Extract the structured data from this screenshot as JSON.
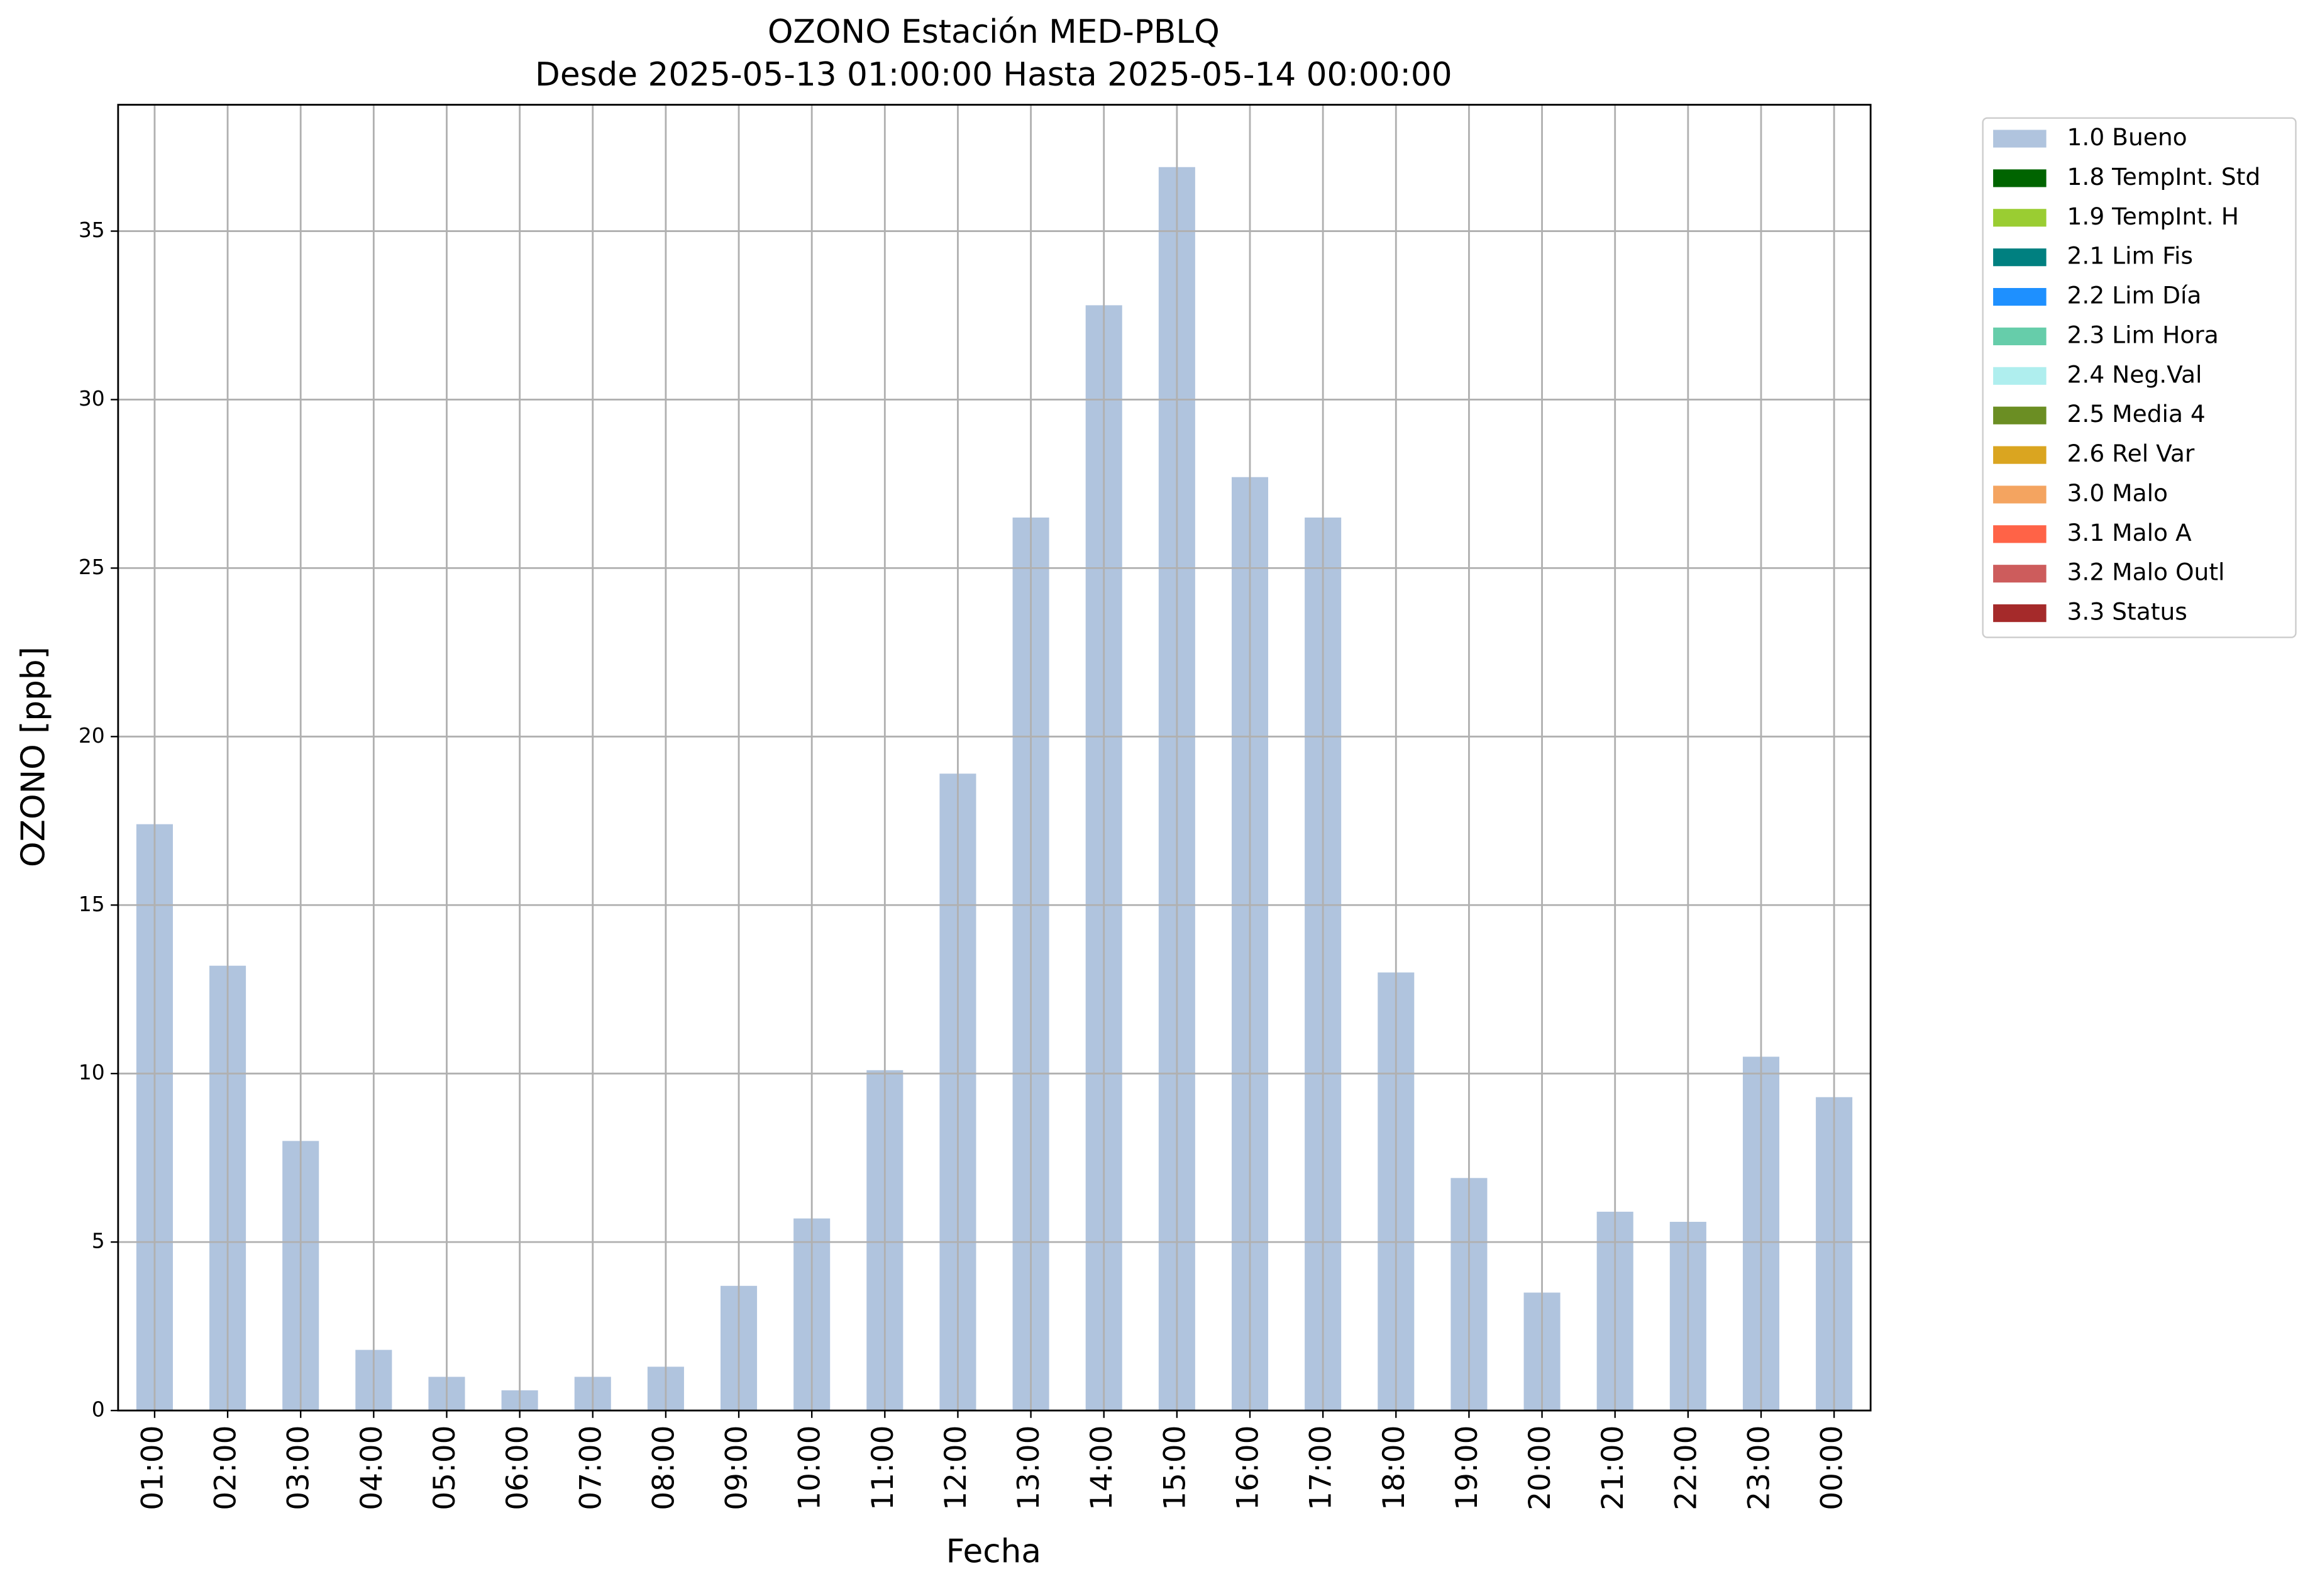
{
  "chart_data": {
    "type": "stacked_bar",
    "title": "OZONO Estación MED-PBLQ",
    "subtitle": "Desde 2025-05-13 01:00:00 Hasta 2025-05-14 00:00:00",
    "x_label": "Fecha",
    "y_label": "OZONO [ppb]",
    "categories": [
      "01:00",
      "02:00",
      "03:00",
      "04:00",
      "05:00",
      "06:00",
      "07:00",
      "08:00",
      "09:00",
      "10:00",
      "11:00",
      "12:00",
      "13:00",
      "14:00",
      "15:00",
      "16:00",
      "17:00",
      "18:00",
      "19:00",
      "20:00",
      "21:00",
      "22:00",
      "23:00",
      "00:00"
    ],
    "series": [
      {
        "name": "1.0 Bueno",
        "color": "#b0c4de",
        "values": [
          17.4,
          13.2,
          8.0,
          1.8,
          1.0,
          0.6,
          1.0,
          1.3,
          3.7,
          5.7,
          10.1,
          18.9,
          26.5,
          32.8,
          36.9,
          27.7,
          26.5,
          13.0,
          6.9,
          3.5,
          5.9,
          5.6,
          10.5,
          9.3
        ]
      },
      {
        "name": "1.8 TempInt. Std",
        "color": "#006400",
        "values": [
          0,
          0,
          0,
          0,
          0,
          0,
          0,
          0,
          0,
          0,
          0,
          0,
          0,
          0,
          0,
          0,
          0,
          0,
          0,
          0,
          0,
          0,
          0,
          0
        ]
      },
      {
        "name": "1.9 TempInt. H",
        "color": "#9acd32",
        "values": [
          0,
          0,
          0,
          0,
          0,
          0,
          0,
          0,
          0,
          0,
          0,
          0,
          0,
          0,
          0,
          0,
          0,
          0,
          0,
          0,
          0,
          0,
          0,
          0
        ]
      },
      {
        "name": "2.1 Lim Fis",
        "color": "#008080",
        "values": [
          0,
          0,
          0,
          0,
          0,
          0,
          0,
          0,
          0,
          0,
          0,
          0,
          0,
          0,
          0,
          0,
          0,
          0,
          0,
          0,
          0,
          0,
          0,
          0
        ]
      },
      {
        "name": "2.2 Lim Día",
        "color": "#1e90ff",
        "values": [
          0,
          0,
          0,
          0,
          0,
          0,
          0,
          0,
          0,
          0,
          0,
          0,
          0,
          0,
          0,
          0,
          0,
          0,
          0,
          0,
          0,
          0,
          0,
          0
        ]
      },
      {
        "name": "2.3 Lim Hora",
        "color": "#66cdaa",
        "values": [
          0,
          0,
          0,
          0,
          0,
          0,
          0,
          0,
          0,
          0,
          0,
          0,
          0,
          0,
          0,
          0,
          0,
          0,
          0,
          0,
          0,
          0,
          0,
          0
        ]
      },
      {
        "name": "2.4 Neg.Val",
        "color": "#afeeee",
        "values": [
          0,
          0,
          0,
          0,
          0,
          0,
          0,
          0,
          0,
          0,
          0,
          0,
          0,
          0,
          0,
          0,
          0,
          0,
          0,
          0,
          0,
          0,
          0,
          0
        ]
      },
      {
        "name": "2.5 Media 4",
        "color": "#6b8e23",
        "values": [
          0,
          0,
          0,
          0,
          0,
          0,
          0,
          0,
          0,
          0,
          0,
          0,
          0,
          0,
          0,
          0,
          0,
          0,
          0,
          0,
          0,
          0,
          0,
          0
        ]
      },
      {
        "name": "2.6 Rel Var",
        "color": "#daa520",
        "values": [
          0,
          0,
          0,
          0,
          0,
          0,
          0,
          0,
          0,
          0,
          0,
          0,
          0,
          0,
          0,
          0,
          0,
          0,
          0,
          0,
          0,
          0,
          0,
          0
        ]
      },
      {
        "name": "3.0 Malo",
        "color": "#f4a460",
        "values": [
          0,
          0,
          0,
          0,
          0,
          0,
          0,
          0,
          0,
          0,
          0,
          0,
          0,
          0,
          0,
          0,
          0,
          0,
          0,
          0,
          0,
          0,
          0,
          0
        ]
      },
      {
        "name": "3.1 Malo A",
        "color": "#ff6347",
        "values": [
          0,
          0,
          0,
          0,
          0,
          0,
          0,
          0,
          0,
          0,
          0,
          0,
          0,
          0,
          0,
          0,
          0,
          0,
          0,
          0,
          0,
          0,
          0,
          0
        ]
      },
      {
        "name": "3.2 Malo Outl",
        "color": "#cd5c5c",
        "values": [
          0,
          0,
          0,
          0,
          0,
          0,
          0,
          0,
          0,
          0,
          0,
          0,
          0,
          0,
          0,
          0,
          0,
          0,
          0,
          0,
          0,
          0,
          0,
          0
        ]
      },
      {
        "name": "3.3 Status",
        "color": "#a52a2a",
        "values": [
          0,
          0,
          0,
          0,
          0,
          0,
          0,
          0,
          0,
          0,
          0,
          0,
          0,
          0,
          0,
          0,
          0,
          0,
          0,
          0,
          0,
          0,
          0,
          0
        ]
      }
    ],
    "ylim": [
      0,
      38.75
    ],
    "yticks": [
      0,
      5,
      10,
      15,
      20,
      25,
      30,
      35
    ],
    "grid": true,
    "legend": "outside upper right"
  }
}
